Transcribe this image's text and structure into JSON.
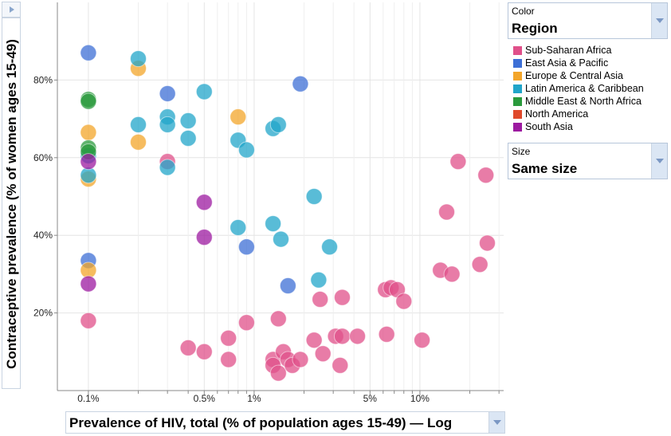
{
  "chart_data": {
    "type": "scatter",
    "x_scale": "log",
    "xlim": [
      0.065,
      32
    ],
    "ylim": [
      0,
      100
    ],
    "x_ticks": [
      {
        "value": 0.1,
        "label": "0.1%"
      },
      {
        "value": 0.5,
        "label": "0.5%"
      },
      {
        "value": 1,
        "label": "1%"
      },
      {
        "value": 5,
        "label": "5%"
      },
      {
        "value": 10,
        "label": "10%"
      }
    ],
    "x_minor_ticks": [
      0.2,
      0.3,
      0.4,
      0.6,
      0.7,
      0.8,
      0.9,
      2,
      3,
      4,
      6,
      7,
      8,
      9,
      20,
      30
    ],
    "y_ticks": [
      {
        "value": 20,
        "label": "20%"
      },
      {
        "value": 40,
        "label": "40%"
      },
      {
        "value": 60,
        "label": "60%"
      },
      {
        "value": 80,
        "label": "80%"
      }
    ],
    "grid": true,
    "xlabel": "Prevalence of HIV, total (% of population ages 15-49) — Log",
    "ylabel": "Contraceptive prevalence (% of women ages 15-49)",
    "legend_position": "right",
    "series": [
      {
        "name": "Sub-Saharan Africa",
        "color": "#e0508a",
        "points": [
          [
            0.1,
            18
          ],
          [
            0.3,
            59
          ],
          [
            0.4,
            11
          ],
          [
            0.5,
            10
          ],
          [
            0.7,
            13.5
          ],
          [
            0.7,
            8
          ],
          [
            0.9,
            17.5
          ],
          [
            1.3,
            8
          ],
          [
            1.3,
            6.5
          ],
          [
            1.4,
            18.5
          ],
          [
            1.4,
            4.5
          ],
          [
            1.5,
            10
          ],
          [
            1.6,
            8
          ],
          [
            1.7,
            6.5
          ],
          [
            1.9,
            8
          ],
          [
            2.3,
            13
          ],
          [
            2.5,
            23.5
          ],
          [
            2.6,
            9.5
          ],
          [
            3.1,
            14
          ],
          [
            3.4,
            24
          ],
          [
            3.4,
            14
          ],
          [
            3.3,
            6.5
          ],
          [
            4.2,
            14
          ],
          [
            6.2,
            26
          ],
          [
            6.7,
            26.5
          ],
          [
            7.3,
            26
          ],
          [
            6.3,
            14.5
          ],
          [
            8,
            23
          ],
          [
            10.3,
            13
          ],
          [
            13.3,
            31
          ],
          [
            14.5,
            46
          ],
          [
            15.6,
            30
          ],
          [
            17,
            59
          ],
          [
            23,
            32.5
          ],
          [
            25,
            55.5
          ],
          [
            25.5,
            38
          ]
        ]
      },
      {
        "name": "East Asia & Pacific",
        "color": "#3d6fd6",
        "points": [
          [
            0.1,
            87
          ],
          [
            0.1,
            33.5
          ],
          [
            0.3,
            76.5
          ],
          [
            0.9,
            37
          ],
          [
            1.6,
            27
          ],
          [
            1.9,
            79
          ]
        ]
      },
      {
        "name": "Europe & Central Asia",
        "color": "#f3a52a",
        "points": [
          [
            0.1,
            66.5
          ],
          [
            0.1,
            54.5
          ],
          [
            0.1,
            31
          ],
          [
            0.2,
            83
          ],
          [
            0.2,
            64
          ],
          [
            0.8,
            70.5
          ]
        ]
      },
      {
        "name": "Latin America & Caribbean",
        "color": "#21a5c9",
        "points": [
          [
            0.2,
            85.5
          ],
          [
            0.2,
            68.5
          ],
          [
            0.3,
            70.5
          ],
          [
            0.3,
            68.5
          ],
          [
            0.3,
            57.5
          ],
          [
            0.4,
            69.5
          ],
          [
            0.4,
            65
          ],
          [
            0.5,
            77
          ],
          [
            0.8,
            64.5
          ],
          [
            0.8,
            42
          ],
          [
            0.9,
            62
          ],
          [
            1.3,
            67.5
          ],
          [
            1.4,
            68.5
          ],
          [
            1.3,
            43
          ],
          [
            1.45,
            39
          ],
          [
            2.3,
            50
          ],
          [
            2.45,
            28.5
          ],
          [
            2.85,
            37
          ],
          [
            0.1,
            55.5
          ],
          [
            0.1,
            60.5
          ]
        ]
      },
      {
        "name": "Middle East & North Africa",
        "color": "#2a9a3c",
        "points": [
          [
            0.1,
            75
          ],
          [
            0.1,
            74.5
          ],
          [
            0.1,
            62.5
          ],
          [
            0.1,
            61.5
          ]
        ]
      },
      {
        "name": "North America",
        "color": "#e0492b",
        "points": []
      },
      {
        "name": "South Asia",
        "color": "#9c1aa0",
        "points": [
          [
            0.5,
            48.5
          ],
          [
            0.5,
            39.5
          ],
          [
            0.1,
            27.5
          ],
          [
            0.1,
            59
          ]
        ]
      }
    ]
  },
  "color_panel": {
    "small_label": "Color",
    "value": "Region"
  },
  "size_panel": {
    "small_label": "Size",
    "value": "Same size"
  },
  "icons": {
    "dropdown": "chevron-down-icon",
    "play": "play-icon"
  }
}
